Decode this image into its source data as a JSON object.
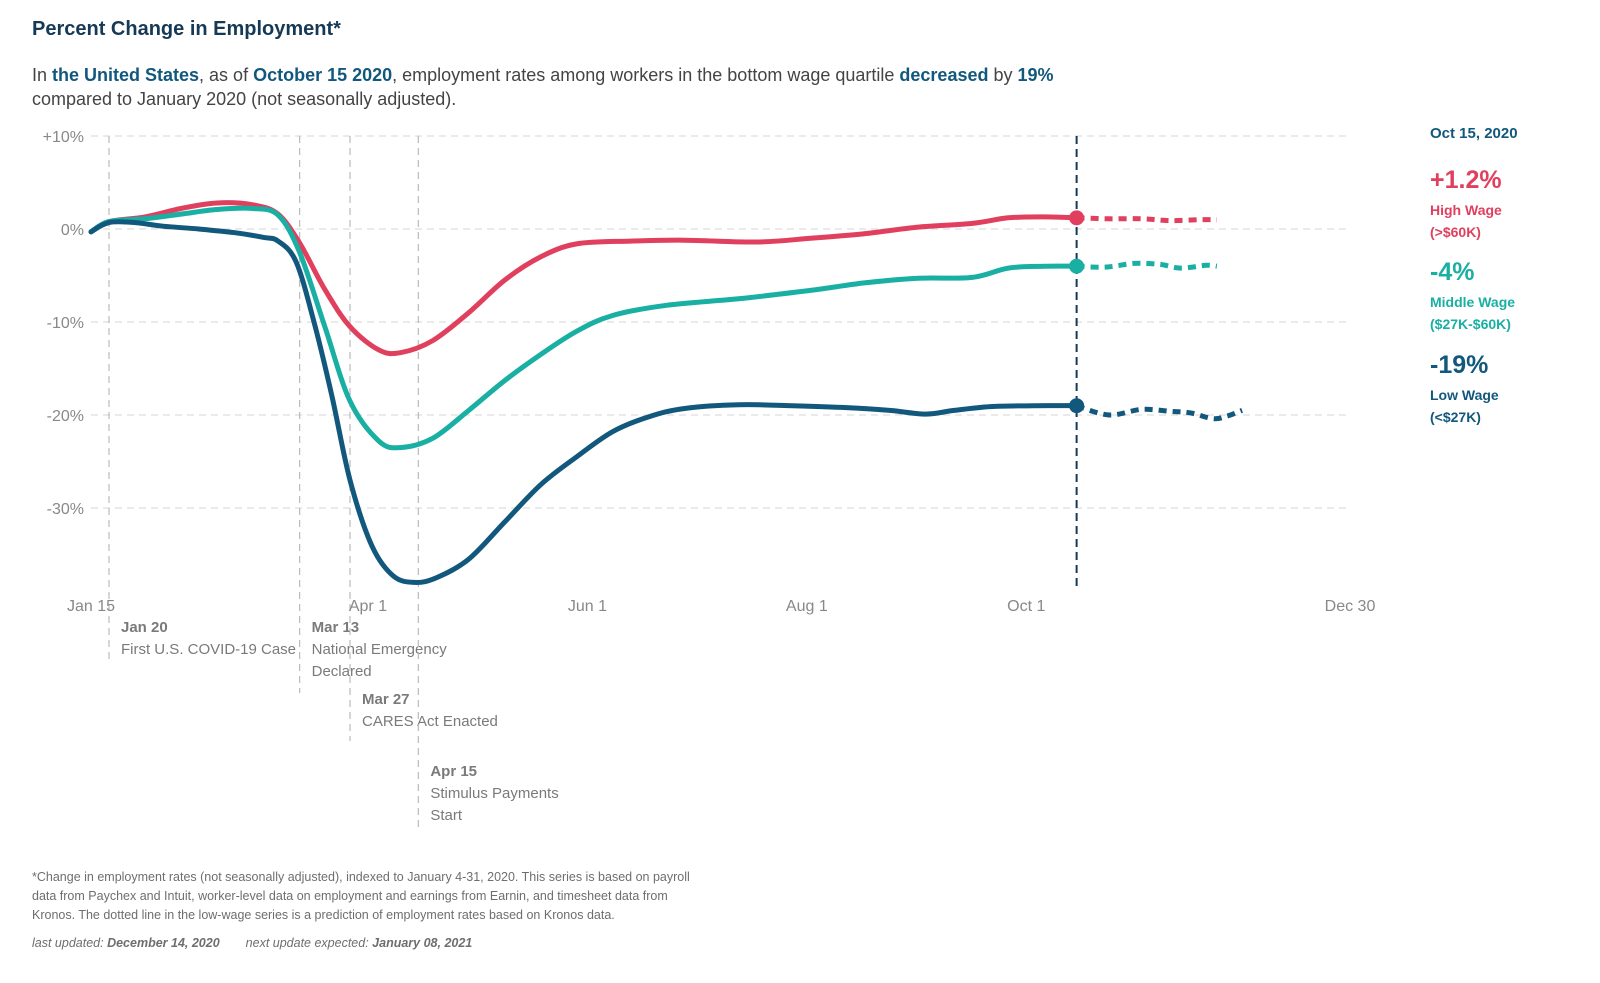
{
  "header": {
    "title": "Percent Change in Employment*",
    "subtitle": {
      "p1": "In ",
      "location": "the United States",
      "p2": ", as of ",
      "date": "October 15 2020",
      "p3": ", employment rates among workers in the bottom wage quartile ",
      "direction": "decreased",
      "p4": " by ",
      "amount": "19%",
      "p5": " compared to January 2020 (not seasonally adjusted)."
    }
  },
  "chart_data": {
    "type": "line",
    "title": "Percent Change in Employment*",
    "xlabel": "",
    "ylabel": "",
    "x_axis": {
      "domain_days": [
        0,
        350
      ],
      "ticks": [
        {
          "label": "Jan 15",
          "day": 0
        },
        {
          "label": "Apr 1",
          "day": 77
        },
        {
          "label": "Jun 1",
          "day": 138
        },
        {
          "label": "Aug 1",
          "day": 199
        },
        {
          "label": "Oct 1",
          "day": 260
        },
        {
          "label": "Dec 30",
          "day": 350
        }
      ]
    },
    "y_axis": {
      "ylim": [
        -38,
        10
      ],
      "ticks": [
        {
          "label": "+10%",
          "value": 10
        },
        {
          "label": "0%",
          "value": 0
        },
        {
          "label": "-10%",
          "value": -10
        },
        {
          "label": "-20%",
          "value": -20
        },
        {
          "label": "-30%",
          "value": -30
        }
      ]
    },
    "grid": true,
    "reference_date": {
      "label": "Oct 15, 2020",
      "day": 274
    },
    "events": [
      {
        "day": 5,
        "date": "Jan 20",
        "text": [
          "First U.S. COVID-19 Case"
        ]
      },
      {
        "day": 58,
        "date": "Mar 13",
        "text": [
          "National Emergency",
          "Declared"
        ]
      },
      {
        "day": 72,
        "date": "Mar 27",
        "text": [
          "CARES Act Enacted"
        ]
      },
      {
        "day": 91,
        "date": "Apr 15",
        "text": [
          "Stimulus Payments",
          "Start"
        ]
      }
    ],
    "series": [
      {
        "name": "High Wage",
        "range": "(>$60K)",
        "value_label": "+1.2%",
        "color": "#e0405e",
        "points": [
          [
            0,
            -0.3
          ],
          [
            5,
            0.8
          ],
          [
            15,
            1.3
          ],
          [
            25,
            2.2
          ],
          [
            35,
            2.8
          ],
          [
            45,
            2.6
          ],
          [
            52,
            1.6
          ],
          [
            58,
            -1.5
          ],
          [
            65,
            -6.5
          ],
          [
            72,
            -10.5
          ],
          [
            80,
            -13
          ],
          [
            86,
            -13.3
          ],
          [
            95,
            -12
          ],
          [
            105,
            -9
          ],
          [
            115,
            -5.5
          ],
          [
            125,
            -3
          ],
          [
            135,
            -1.6
          ],
          [
            150,
            -1.3
          ],
          [
            165,
            -1.2
          ],
          [
            185,
            -1.4
          ],
          [
            200,
            -1
          ],
          [
            215,
            -0.5
          ],
          [
            230,
            0.2
          ],
          [
            245,
            0.6
          ],
          [
            255,
            1.2
          ],
          [
            265,
            1.3
          ],
          [
            274,
            1.2
          ]
        ],
        "forecast": [
          [
            274,
            1.2
          ],
          [
            283,
            1.1
          ],
          [
            292,
            1.1
          ],
          [
            300,
            0.9
          ],
          [
            308,
            1.0
          ],
          [
            313,
            1.0
          ]
        ]
      },
      {
        "name": "Middle Wage",
        "range": "($27K-$60K)",
        "value_label": "-4%",
        "color": "#1aafa3",
        "points": [
          [
            0,
            -0.3
          ],
          [
            5,
            0.8
          ],
          [
            15,
            1.1
          ],
          [
            25,
            1.6
          ],
          [
            35,
            2.1
          ],
          [
            45,
            2.2
          ],
          [
            52,
            1.5
          ],
          [
            58,
            -2.5
          ],
          [
            65,
            -10.5
          ],
          [
            72,
            -18.5
          ],
          [
            80,
            -22.8
          ],
          [
            86,
            -23.5
          ],
          [
            95,
            -22.5
          ],
          [
            105,
            -19.5
          ],
          [
            115,
            -16.3
          ],
          [
            125,
            -13.5
          ],
          [
            135,
            -11
          ],
          [
            145,
            -9.3
          ],
          [
            160,
            -8.2
          ],
          [
            180,
            -7.5
          ],
          [
            200,
            -6.6
          ],
          [
            215,
            -5.8
          ],
          [
            230,
            -5.3
          ],
          [
            245,
            -5.2
          ],
          [
            255,
            -4.2
          ],
          [
            265,
            -4.0
          ],
          [
            274,
            -4.0
          ]
        ],
        "forecast": [
          [
            274,
            -4.0
          ],
          [
            282,
            -4.1
          ],
          [
            290,
            -3.7
          ],
          [
            297,
            -3.8
          ],
          [
            303,
            -4.2
          ],
          [
            310,
            -3.9
          ],
          [
            313,
            -4.0
          ]
        ]
      },
      {
        "name": "Low Wage",
        "range": "(<$27K)",
        "value_label": "-19%",
        "color": "#12587d",
        "points": [
          [
            0,
            -0.3
          ],
          [
            5,
            0.7
          ],
          [
            12,
            0.7
          ],
          [
            20,
            0.3
          ],
          [
            30,
            0
          ],
          [
            40,
            -0.4
          ],
          [
            48,
            -0.9
          ],
          [
            52,
            -1.3
          ],
          [
            57,
            -3.5
          ],
          [
            62,
            -10
          ],
          [
            67,
            -18
          ],
          [
            72,
            -27
          ],
          [
            78,
            -34
          ],
          [
            84,
            -37.3
          ],
          [
            90,
            -38
          ],
          [
            96,
            -37.5
          ],
          [
            105,
            -35.5
          ],
          [
            115,
            -31.5
          ],
          [
            125,
            -27.5
          ],
          [
            135,
            -24.5
          ],
          [
            145,
            -21.8
          ],
          [
            155,
            -20.2
          ],
          [
            165,
            -19.3
          ],
          [
            180,
            -18.9
          ],
          [
            195,
            -19.0
          ],
          [
            210,
            -19.2
          ],
          [
            222,
            -19.5
          ],
          [
            232,
            -19.9
          ],
          [
            240,
            -19.5
          ],
          [
            250,
            -19.1
          ],
          [
            262,
            -19.0
          ],
          [
            274,
            -19.0
          ]
        ],
        "forecast": [
          [
            274,
            -19.0
          ],
          [
            283,
            -20.0
          ],
          [
            292,
            -19.4
          ],
          [
            300,
            -19.6
          ],
          [
            306,
            -19.8
          ],
          [
            312,
            -20.4
          ],
          [
            316,
            -20.1
          ],
          [
            320,
            -19.5
          ]
        ]
      }
    ]
  },
  "footnote": {
    "lines": [
      "*Change in employment rates (not seasonally adjusted), indexed to January 4-31, 2020. This series is based on payroll",
      "data from Paychex and Intuit, worker-level data on employment and earnings from Earnin, and timesheet data from",
      "Kronos. The dotted line in the low-wage series is a prediction of employment rates based on Kronos data."
    ],
    "updated_label": "last updated:",
    "updated_value": "December 14, 2020",
    "next_label": "next update expected:",
    "next_value": "January 08, 2021"
  },
  "colors": {
    "title": "#163a56",
    "accent": "#12587d",
    "grid": "#dddddd",
    "axis_text": "#888888",
    "event_line": "#bbbbbb"
  }
}
